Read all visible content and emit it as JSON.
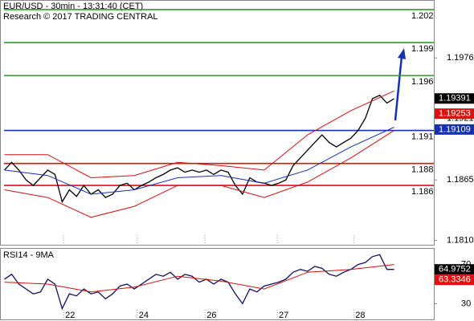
{
  "chart_data": [
    {
      "type": "line",
      "title": "EUR/USD - 30min - 13:31:40 (CET)",
      "subtitle": "Research © 2017 TRADING CENTRAL",
      "xlim": [
        -0.5,
        59.5
      ],
      "ylim": [
        1.1806,
        1.2028
      ],
      "yticks": [
        1.1976,
        1.1921,
        1.1865,
        {
          "value": 1.181,
          "label": "1.1810"
        }
      ],
      "xticks": [
        8.2,
        18.4,
        27.8,
        37.8,
        48.4
      ],
      "levels": [
        {
          "value": 1.202,
          "color": "#2e9a2e"
        },
        {
          "value": 1.199,
          "color": "#2e9a2e"
        },
        {
          "value": 1.196,
          "color": "#2e9a2e"
        },
        {
          "value": 1.191,
          "color": "#1530b0"
        },
        {
          "value": 1.188,
          "color": "#e01010"
        },
        {
          "value": 1.186,
          "color": "#e01010"
        }
      ],
      "tags": [
        {
          "value": 1.19391,
          "color": "#000000"
        },
        {
          "value": 1.19253,
          "color": "#e01010"
        },
        {
          "value": 1.19109,
          "color": "#1530b0"
        }
      ],
      "series": [
        {
          "color": "#000000",
          "x": [
            0,
            1,
            2,
            3,
            4,
            5,
            6,
            7,
            8,
            9,
            10,
            11,
            12,
            13,
            14,
            15,
            16,
            17,
            18,
            19,
            20,
            21,
            22,
            23,
            24,
            25,
            26,
            27,
            28,
            29,
            30,
            31,
            32,
            33,
            34,
            35,
            36,
            37,
            38,
            39,
            40,
            41,
            42,
            43,
            44,
            45,
            46,
            47,
            48,
            49,
            50,
            51,
            52,
            53,
            54
          ],
          "values": [
            1.1874,
            1.1881,
            1.1874,
            1.1865,
            1.186,
            1.1867,
            1.1874,
            1.187,
            1.1845,
            1.1856,
            1.185,
            1.186,
            1.1852,
            1.1856,
            1.1849,
            1.1852,
            1.186,
            1.1862,
            1.1856,
            1.186,
            1.1863,
            1.1867,
            1.187,
            1.1874,
            1.1876,
            1.1872,
            1.1874,
            1.1872,
            1.1874,
            1.187,
            1.1874,
            1.1872,
            1.186,
            1.1852,
            1.1867,
            1.1863,
            1.1862,
            1.186,
            1.1862,
            1.1865,
            1.1878,
            1.1885,
            1.1892,
            1.1899,
            1.1906,
            1.1899,
            1.1895,
            1.1899,
            1.1903,
            1.191,
            1.1921,
            1.1939,
            1.1942,
            1.1935,
            1.1939
          ]
        },
        {
          "color": "#d01010",
          "x": [
            0,
            6,
            12,
            18,
            24,
            30,
            36,
            42,
            48,
            54
          ],
          "values": [
            1.1888,
            1.1888,
            1.1867,
            1.1869,
            1.1881,
            1.1878,
            1.1874,
            1.1906,
            1.1928,
            1.1946
          ]
        },
        {
          "color": "#d01010",
          "x": [
            0,
            6,
            12,
            18,
            24,
            30,
            36,
            42,
            48,
            54
          ],
          "values": [
            1.1856,
            1.1849,
            1.1831,
            1.1841,
            1.186,
            1.186,
            1.1849,
            1.1863,
            1.1885,
            1.191
          ]
        },
        {
          "color": "#1530b0",
          "x": [
            0,
            6,
            12,
            18,
            24,
            30,
            36,
            42,
            48,
            54
          ],
          "values": [
            1.1874,
            1.1869,
            1.1852,
            1.1856,
            1.1867,
            1.1869,
            1.1862,
            1.1874,
            1.1895,
            1.1913
          ]
        }
      ]
    },
    {
      "type": "line",
      "title": "RSI14 - 9MA",
      "xlim": [
        -0.5,
        59.5
      ],
      "ylim": [
        14,
        86
      ],
      "yticks": [
        70,
        30
      ],
      "xticks": [
        {
          "value": 8.2,
          "label": "22"
        },
        {
          "value": 18.4,
          "label": "24"
        },
        {
          "value": 27.8,
          "label": "26"
        },
        {
          "value": 37.8,
          "label": "27"
        },
        {
          "value": 48.4,
          "label": "28"
        }
      ],
      "tags": [
        {
          "value": 64.9752,
          "color": "#000000"
        },
        {
          "value": 63.3346,
          "color": "#e01010"
        }
      ],
      "series": [
        {
          "color": "#101060",
          "x": [
            0,
            1,
            2,
            3,
            4,
            5,
            6,
            7,
            8,
            9,
            10,
            11,
            12,
            13,
            14,
            15,
            16,
            17,
            18,
            19,
            20,
            21,
            22,
            23,
            24,
            25,
            26,
            27,
            28,
            29,
            30,
            31,
            32,
            33,
            34,
            35,
            36,
            37,
            38,
            39,
            40,
            41,
            42,
            43,
            44,
            45,
            46,
            47,
            48,
            49,
            50,
            51,
            52,
            53,
            54
          ],
          "values": [
            55,
            60,
            50,
            45,
            40,
            42,
            55,
            50,
            25,
            40,
            38,
            45,
            40,
            42,
            35,
            40,
            48,
            50,
            45,
            50,
            55,
            60,
            58,
            62,
            55,
            60,
            58,
            52,
            55,
            50,
            55,
            52,
            40,
            30,
            45,
            42,
            48,
            50,
            52,
            55,
            62,
            65,
            63,
            68,
            66,
            60,
            58,
            62,
            65,
            70,
            72,
            78,
            80,
            65,
            65
          ]
        },
        {
          "color": "#d01010",
          "x": [
            0,
            6,
            12,
            18,
            24,
            30,
            36,
            42,
            48,
            54
          ],
          "values": [
            52,
            50,
            42,
            47,
            58,
            53,
            45,
            62,
            65,
            70
          ]
        }
      ]
    }
  ]
}
